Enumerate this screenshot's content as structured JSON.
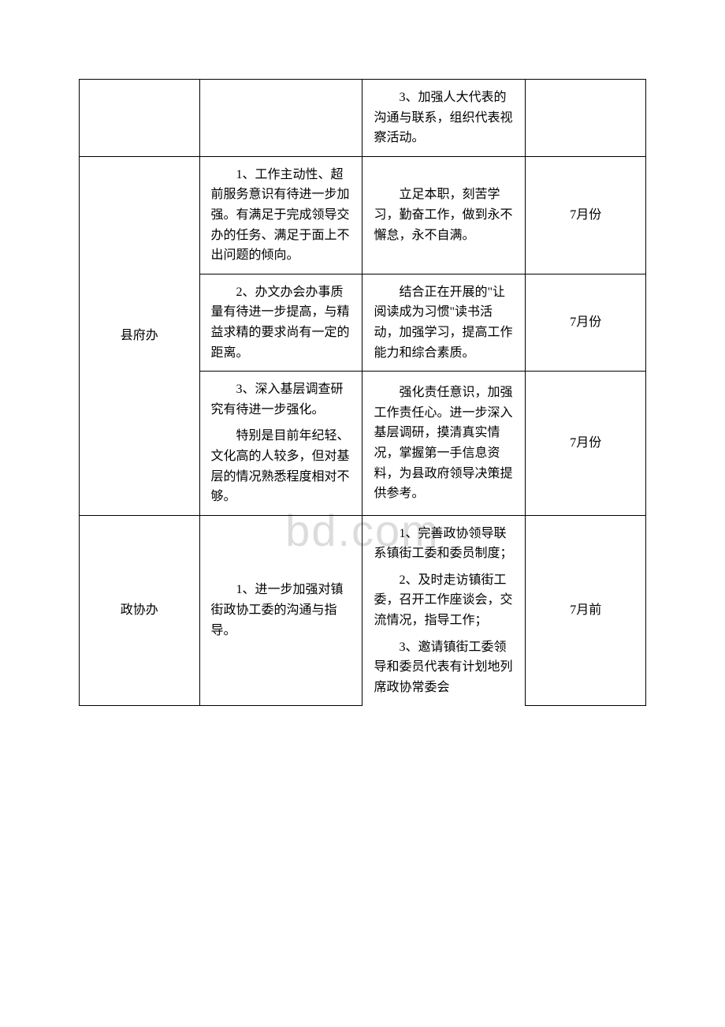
{
  "watermark": "bd.com",
  "rows": [
    {
      "dept": "",
      "issue": "",
      "measures": [
        "3、加强人大代表的沟通与联系，组织代表视察活动。"
      ],
      "time": ""
    },
    {
      "dept": "县府办",
      "sub": [
        {
          "issue": [
            "1、工作主动性、超前服务意识有待进一步加强。有满足于完成领导交办的任务、满足于面上不出问题的倾向。"
          ],
          "measure": [
            "立足本职，刻苦学习，勤奋工作，做到永不懈怠，永不自满。"
          ],
          "time": "7月份"
        },
        {
          "issue": [
            "2、办文办会办事质量有待进一步提高，与精益求精的要求尚有一定的距离。"
          ],
          "measure": [
            "结合正在开展的\"让阅读成为习惯\"读书活动，加强学习，提高工作能力和综合素质。"
          ],
          "time": "7月份"
        },
        {
          "issue": [
            "3、深入基层调查研究有待进一步强化。",
            "特别是目前年纪轻、文化高的人较多，但对基层的情况熟悉程度相对不够。"
          ],
          "measure": [
            "强化责任意识，加强工作责任心。进一步深入基层调研，摸清真实情况，掌握第一手信息资料，为县政府领导决策提供参考。"
          ],
          "time": "7月份"
        }
      ]
    },
    {
      "dept": "政协办",
      "issue": [
        "1、进一步加强对镇街政协工委的沟通与指导。"
      ],
      "measures": [
        "1、完善政协领导联系镇街工委和委员制度；",
        "2、及时走访镇街工委，召开工作座谈会，交流情况，指导工作；",
        "3、邀请镇街工委领导和委员代表有计划地列席政协常委会"
      ],
      "time": "7月前"
    }
  ]
}
